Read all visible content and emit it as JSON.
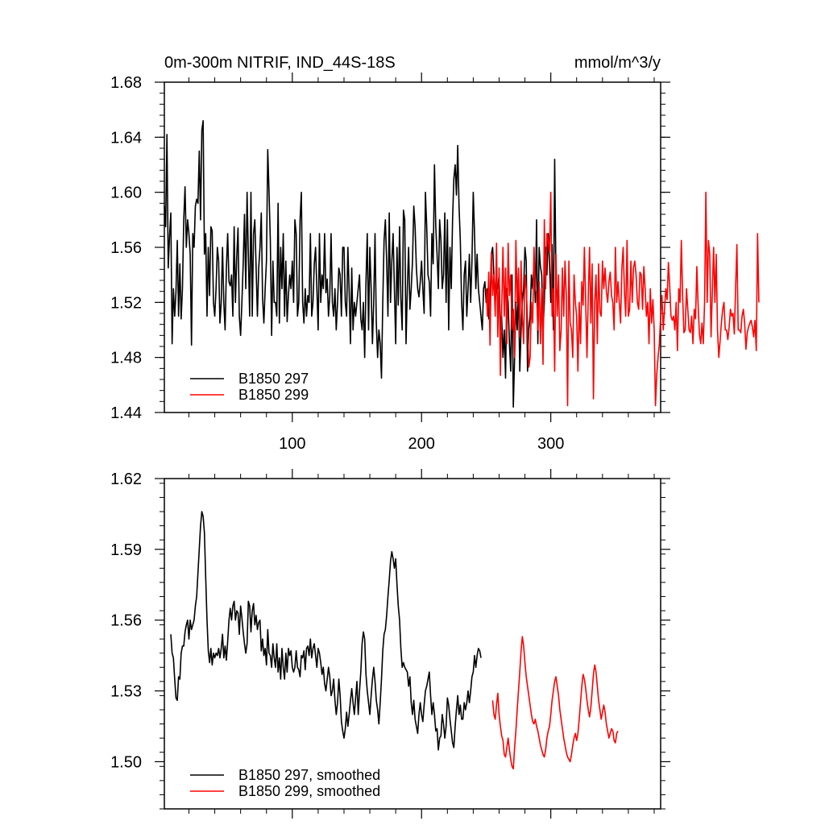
{
  "chart_data": [
    {
      "type": "line",
      "title": "0m-300m NITRIF, IND_44S-18S",
      "units": "mmol/m^3/y",
      "xlim": [
        1,
        385
      ],
      "ylim": [
        1.44,
        1.68
      ],
      "xticks": [
        100,
        200,
        300
      ],
      "yticks": [
        1.44,
        1.48,
        1.52,
        1.56,
        1.6,
        1.64,
        1.68
      ],
      "ytick_labels": [
        "1.44",
        "1.48",
        "1.52",
        "1.56",
        "1.60",
        "1.64",
        "1.68"
      ],
      "xtick_labels": [
        "100",
        "200",
        "300"
      ],
      "grid": false,
      "legend": "bottom-left",
      "series": [
        {
          "name": "B1850 297",
          "color": "#000000",
          "x_start": 1,
          "values": [
            1.59,
            1.575,
            1.642,
            1.545,
            1.568,
            1.585,
            1.49,
            1.53,
            1.51,
            1.528,
            1.565,
            1.51,
            1.548,
            1.508,
            1.53,
            1.58,
            1.604,
            1.56,
            1.58,
            1.57,
            1.555,
            1.489,
            1.57,
            1.56,
            1.59,
            1.595,
            1.592,
            1.63,
            1.58,
            1.645,
            1.652,
            1.555,
            1.57,
            1.51,
            1.56,
            1.525,
            1.575,
            1.572,
            1.52,
            1.51,
            1.53,
            1.56,
            1.55,
            1.505,
            1.52,
            1.56,
            1.52,
            1.5,
            1.545,
            1.57,
            1.535,
            1.532,
            1.54,
            1.51,
            1.575,
            1.52,
            1.553,
            1.574,
            1.51,
            1.496,
            1.52,
            1.548,
            1.584,
            1.53,
            1.6,
            1.554,
            1.51,
            1.6,
            1.51,
            1.57,
            1.58,
            1.545,
            1.51,
            1.545,
            1.56,
            1.585,
            1.523,
            1.505,
            1.53,
            1.55,
            1.631,
            1.6,
            1.565,
            1.496,
            1.55,
            1.52,
            1.52,
            1.51,
            1.592,
            1.505,
            1.56,
            1.53,
            1.57,
            1.51,
            1.55,
            1.506,
            1.525,
            1.54,
            1.53,
            1.55,
            1.52,
            1.58,
            1.57,
            1.51,
            1.52,
            1.58,
            1.6,
            1.52,
            1.505,
            1.53,
            1.51,
            1.525,
            1.52,
            1.57,
            1.51,
            1.52,
            1.548,
            1.56,
            1.53,
            1.5,
            1.57,
            1.52,
            1.54,
            1.53,
            1.57,
            1.527,
            1.537,
            1.51,
            1.525,
            1.57,
            1.52,
            1.51,
            1.53,
            1.5,
            1.52,
            1.545,
            1.54,
            1.51,
            1.56,
            1.56,
            1.52,
            1.51,
            1.56,
            1.528,
            1.49,
            1.545,
            1.5,
            1.52,
            1.51,
            1.52,
            1.53,
            1.54,
            1.508,
            1.5,
            1.52,
            1.48,
            1.535,
            1.57,
            1.5,
            1.56,
            1.53,
            1.49,
            1.52,
            1.57,
            1.505,
            1.48,
            1.5,
            1.49,
            1.465,
            1.52,
            1.565,
            1.58,
            1.55,
            1.51,
            1.585,
            1.52,
            1.55,
            1.57,
            1.53,
            1.49,
            1.56,
            1.518,
            1.575,
            1.523,
            1.5,
            1.587,
            1.58,
            1.49,
            1.53,
            1.56,
            1.515,
            1.53,
            1.55,
            1.59,
            1.575,
            1.545,
            1.53,
            1.524,
            1.535,
            1.55,
            1.53,
            1.512,
            1.6,
            1.575,
            1.54,
            1.535,
            1.51,
            1.57,
            1.548,
            1.62,
            1.575,
            1.555,
            1.53,
            1.58,
            1.565,
            1.53,
            1.54,
            1.585,
            1.52,
            1.58,
            1.5,
            1.56,
            1.53,
            1.58,
            1.61,
            1.62,
            1.598,
            1.634,
            1.59,
            1.565,
            1.52,
            1.5,
            1.54,
            1.55,
            1.51,
            1.53,
            1.555,
            1.52,
            1.55,
            1.6,
            1.57,
            1.53,
            1.555,
            1.53,
            1.52,
            1.51,
            1.5,
            1.53,
            1.535,
            1.52,
            1.53,
            1.508,
            1.52,
            1.555,
            1.56,
            1.54,
            1.52,
            1.532,
            1.53,
            1.54,
            1.5,
            1.51,
            1.48,
            1.5,
            1.465,
            1.53,
            1.52,
            1.49,
            1.47,
            1.54,
            1.444,
            1.48,
            1.52,
            1.5,
            1.53,
            1.47,
            1.5,
            1.52,
            1.53,
            1.56,
            1.55,
            1.47,
            1.5,
            1.51,
            1.54,
            1.53,
            1.55,
            1.52,
            1.58,
            1.49,
            1.56,
            1.546,
            1.54,
            1.5,
            1.52,
            1.56,
            1.54,
            1.57,
            1.55,
            1.52,
            1.562,
            1.5,
            1.624,
            1.54
          ]
        },
        {
          "name": "B1850 299",
          "color": "#ff0000",
          "x_start": 250,
          "values": [
            1.53,
            1.51,
            1.542,
            1.489,
            1.556,
            1.525,
            1.54,
            1.51,
            1.563,
            1.495,
            1.545,
            1.467,
            1.515,
            1.56,
            1.51,
            1.545,
            1.49,
            1.563,
            1.525,
            1.54,
            1.5,
            1.515,
            1.48,
            1.565,
            1.52,
            1.545,
            1.495,
            1.55,
            1.51,
            1.49,
            1.54,
            1.53,
            1.508,
            1.473,
            1.48,
            1.52,
            1.505,
            1.56,
            1.53,
            1.526,
            1.5,
            1.535,
            1.49,
            1.53,
            1.475,
            1.58,
            1.53,
            1.57,
            1.565,
            1.557,
            1.6,
            1.51,
            1.53,
            1.47,
            1.555,
            1.51,
            1.54,
            1.485,
            1.5,
            1.545,
            1.51,
            1.55,
            1.525,
            1.445,
            1.55,
            1.505,
            1.5,
            1.48,
            1.54,
            1.52,
            1.51,
            1.47,
            1.52,
            1.49,
            1.535,
            1.518,
            1.56,
            1.52,
            1.48,
            1.525,
            1.56,
            1.505,
            1.548,
            1.45,
            1.52,
            1.54,
            1.49,
            1.548,
            1.513,
            1.51,
            1.55,
            1.53,
            1.545,
            1.528,
            1.52,
            1.535,
            1.542,
            1.525,
            1.52,
            1.5,
            1.56,
            1.52,
            1.535,
            1.52,
            1.505,
            1.545,
            1.56,
            1.528,
            1.51,
            1.565,
            1.51,
            1.515,
            1.55,
            1.52,
            1.545,
            1.55,
            1.54,
            1.52,
            1.515,
            1.542,
            1.54,
            1.515,
            1.546,
            1.53,
            1.51,
            1.52,
            1.49,
            1.53,
            1.505,
            1.522,
            1.5,
            1.445,
            1.468,
            1.48,
            1.49,
            1.51,
            1.525,
            1.5,
            1.515,
            1.53,
            1.522,
            1.549,
            1.532,
            1.51,
            1.507,
            1.51,
            1.5,
            1.52,
            1.485,
            1.53,
            1.52,
            1.565,
            1.525,
            1.498,
            1.5,
            1.53,
            1.515,
            1.5,
            1.498,
            1.51,
            1.49,
            1.515,
            1.508,
            1.546,
            1.518,
            1.497,
            1.49,
            1.505,
            1.49,
            1.52,
            1.6,
            1.52,
            1.565,
            1.555,
            1.495,
            1.528,
            1.56,
            1.52,
            1.555,
            1.5,
            1.48,
            1.492,
            1.505,
            1.515,
            1.52,
            1.5,
            1.5,
            1.493,
            1.502,
            1.515,
            1.51,
            1.512,
            1.497,
            1.53,
            1.562,
            1.5,
            1.5,
            1.498,
            1.51,
            1.515,
            1.505,
            1.486,
            1.498,
            1.502,
            1.505,
            1.507,
            1.502,
            1.495,
            1.507,
            1.485,
            1.57,
            1.52
          ]
        }
      ]
    },
    {
      "type": "line",
      "title": "",
      "units": "",
      "xlim": [
        1,
        385
      ],
      "ylim": [
        1.48,
        1.62
      ],
      "xticks": [
        100,
        200,
        300
      ],
      "yticks": [
        1.5,
        1.53,
        1.56,
        1.59,
        1.62
      ],
      "ytick_labels": [
        "1.50",
        "1.53",
        "1.56",
        "1.59",
        "1.62"
      ],
      "grid": false,
      "legend": "bottom-left",
      "series": [
        {
          "name": "B1850 297, smoothed",
          "color": "#000000",
          "x_start": 6,
          "values": [
            1.554,
            1.546,
            1.544,
            1.535,
            1.527,
            1.526,
            1.536,
            1.535,
            1.546,
            1.549,
            1.549,
            1.555,
            1.558,
            1.56,
            1.552,
            1.56,
            1.556,
            1.558,
            1.56,
            1.566,
            1.57,
            1.58,
            1.59,
            1.6,
            1.606,
            1.604,
            1.597,
            1.578,
            1.56,
            1.547,
            1.542,
            1.548,
            1.541,
            1.546,
            1.544,
            1.546,
            1.545,
            1.548,
            1.544,
            1.548,
            1.554,
            1.544,
            1.549,
            1.543,
            1.551,
            1.56,
            1.565,
            1.56,
            1.566,
            1.568,
            1.56,
            1.564,
            1.563,
            1.554,
            1.566,
            1.561,
            1.555,
            1.55,
            1.546,
            1.55,
            1.568,
            1.566,
            1.555,
            1.564,
            1.567,
            1.558,
            1.562,
            1.556,
            1.559,
            1.56,
            1.547,
            1.552,
            1.545,
            1.548,
            1.541,
            1.556,
            1.546,
            1.545,
            1.54,
            1.55,
            1.544,
            1.54,
            1.55,
            1.538,
            1.544,
            1.535,
            1.548,
            1.54,
            1.535,
            1.546,
            1.538,
            1.548,
            1.545,
            1.547,
            1.54,
            1.538,
            1.54,
            1.547,
            1.54,
            1.539,
            1.536,
            1.545,
            1.544,
            1.547,
            1.539,
            1.548,
            1.549,
            1.545,
            1.552,
            1.544,
            1.548,
            1.55,
            1.545,
            1.54,
            1.548,
            1.546,
            1.542,
            1.537,
            1.54,
            1.533,
            1.53,
            1.535,
            1.54,
            1.536,
            1.528,
            1.53,
            1.535,
            1.526,
            1.52,
            1.525,
            1.535,
            1.528,
            1.517,
            1.513,
            1.51,
            1.514,
            1.521,
            1.515,
            1.52,
            1.526,
            1.531,
            1.525,
            1.52,
            1.527,
            1.534,
            1.52,
            1.53,
            1.538,
            1.55,
            1.555,
            1.552,
            1.537,
            1.53,
            1.525,
            1.52,
            1.528,
            1.535,
            1.54,
            1.534,
            1.526,
            1.522,
            1.516,
            1.525,
            1.535,
            1.547,
            1.554,
            1.556,
            1.562,
            1.57,
            1.577,
            1.585,
            1.589,
            1.586,
            1.582,
            1.586,
            1.575,
            1.566,
            1.56,
            1.548,
            1.54,
            1.542,
            1.54,
            1.539,
            1.538,
            1.532,
            1.536,
            1.525,
            1.52,
            1.526,
            1.518,
            1.515,
            1.512,
            1.52,
            1.525,
            1.52,
            1.517,
            1.524,
            1.53,
            1.532,
            1.535,
            1.538,
            1.528,
            1.52,
            1.525,
            1.52,
            1.513,
            1.514,
            1.505,
            1.51,
            1.511,
            1.52,
            1.516,
            1.51,
            1.515,
            1.527,
            1.524,
            1.518,
            1.513,
            1.508,
            1.506,
            1.515,
            1.522,
            1.528,
            1.52,
            1.524,
            1.518,
            1.518,
            1.525,
            1.522,
            1.525,
            1.53,
            1.525,
            1.53,
            1.536,
            1.538,
            1.545,
            1.54,
            1.545,
            1.548,
            1.547,
            1.544
          ]
        },
        {
          "name": "B1850 299, smoothed",
          "color": "#ff0000",
          "x_start": 255,
          "values": [
            1.526,
            1.52,
            1.518,
            1.524,
            1.529,
            1.52,
            1.515,
            1.511,
            1.509,
            1.503,
            1.502,
            1.506,
            1.51,
            1.505,
            1.501,
            1.498,
            1.497,
            1.506,
            1.513,
            1.522,
            1.53,
            1.538,
            1.547,
            1.553,
            1.549,
            1.542,
            1.536,
            1.532,
            1.528,
            1.524,
            1.52,
            1.517,
            1.516,
            1.518,
            1.515,
            1.513,
            1.51,
            1.507,
            1.505,
            1.503,
            1.502,
            1.505,
            1.51,
            1.513,
            1.515,
            1.52,
            1.526,
            1.53,
            1.534,
            1.536,
            1.532,
            1.528,
            1.522,
            1.518,
            1.514,
            1.51,
            1.507,
            1.504,
            1.502,
            1.501,
            1.5,
            1.503,
            1.507,
            1.51,
            1.512,
            1.509,
            1.512,
            1.518,
            1.525,
            1.532,
            1.537,
            1.535,
            1.531,
            1.526,
            1.522,
            1.519,
            1.523,
            1.53,
            1.537,
            1.541,
            1.538,
            1.532,
            1.526,
            1.522,
            1.518,
            1.521,
            1.524,
            1.521,
            1.516,
            1.513,
            1.51,
            1.512,
            1.514,
            1.513,
            1.509,
            1.508,
            1.512,
            1.513
          ]
        }
      ]
    }
  ]
}
